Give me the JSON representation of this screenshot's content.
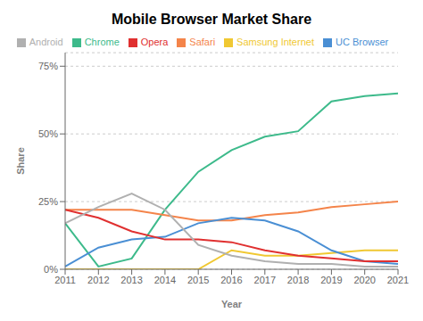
{
  "chart_data": {
    "type": "line",
    "title": "Mobile Browser Market Share",
    "xlabel": "Year",
    "ylabel": "Share",
    "x": [
      2011,
      2012,
      2013,
      2014,
      2015,
      2016,
      2017,
      2018,
      2019,
      2020,
      2021
    ],
    "series": [
      {
        "name": "Chrome",
        "color": "#3dba8b",
        "values": [
          17,
          1,
          4,
          22,
          36,
          44,
          49,
          51,
          62,
          64,
          65
        ]
      },
      {
        "name": "Safari",
        "color": "#f4844a",
        "values": [
          22,
          22,
          22,
          20,
          18,
          18,
          20,
          21,
          23,
          24,
          25
        ]
      },
      {
        "name": "Samsung Internet",
        "color": "#f0c832",
        "values": [
          0,
          0,
          0,
          0,
          0,
          7,
          5,
          5,
          6,
          7,
          7
        ]
      },
      {
        "name": "UC Browser",
        "color": "#4a8fd4",
        "values": [
          1,
          8,
          11,
          12,
          17,
          19,
          18,
          14,
          7,
          3,
          2
        ]
      },
      {
        "name": "Opera",
        "color": "#e03030",
        "values": [
          22,
          19,
          14,
          11,
          11,
          10,
          7,
          5,
          4,
          3,
          3
        ]
      },
      {
        "name": "Android",
        "color": "#b0b0b0",
        "values": [
          17,
          23,
          28,
          22,
          9,
          5,
          3,
          2,
          2,
          1,
          1
        ]
      }
    ],
    "xlim": [
      2011,
      2021
    ],
    "xticks": [
      2011,
      2012,
      2013,
      2014,
      2015,
      2016,
      2017,
      2018,
      2019,
      2020,
      2021
    ],
    "ylim": [
      0,
      80
    ],
    "yticks": [
      {
        "value": 0,
        "label": "0%"
      },
      {
        "value": 25,
        "label": "25%"
      },
      {
        "value": 50,
        "label": "50%"
      },
      {
        "value": 75,
        "label": "75%"
      }
    ],
    "grid": true,
    "legend": "top"
  }
}
